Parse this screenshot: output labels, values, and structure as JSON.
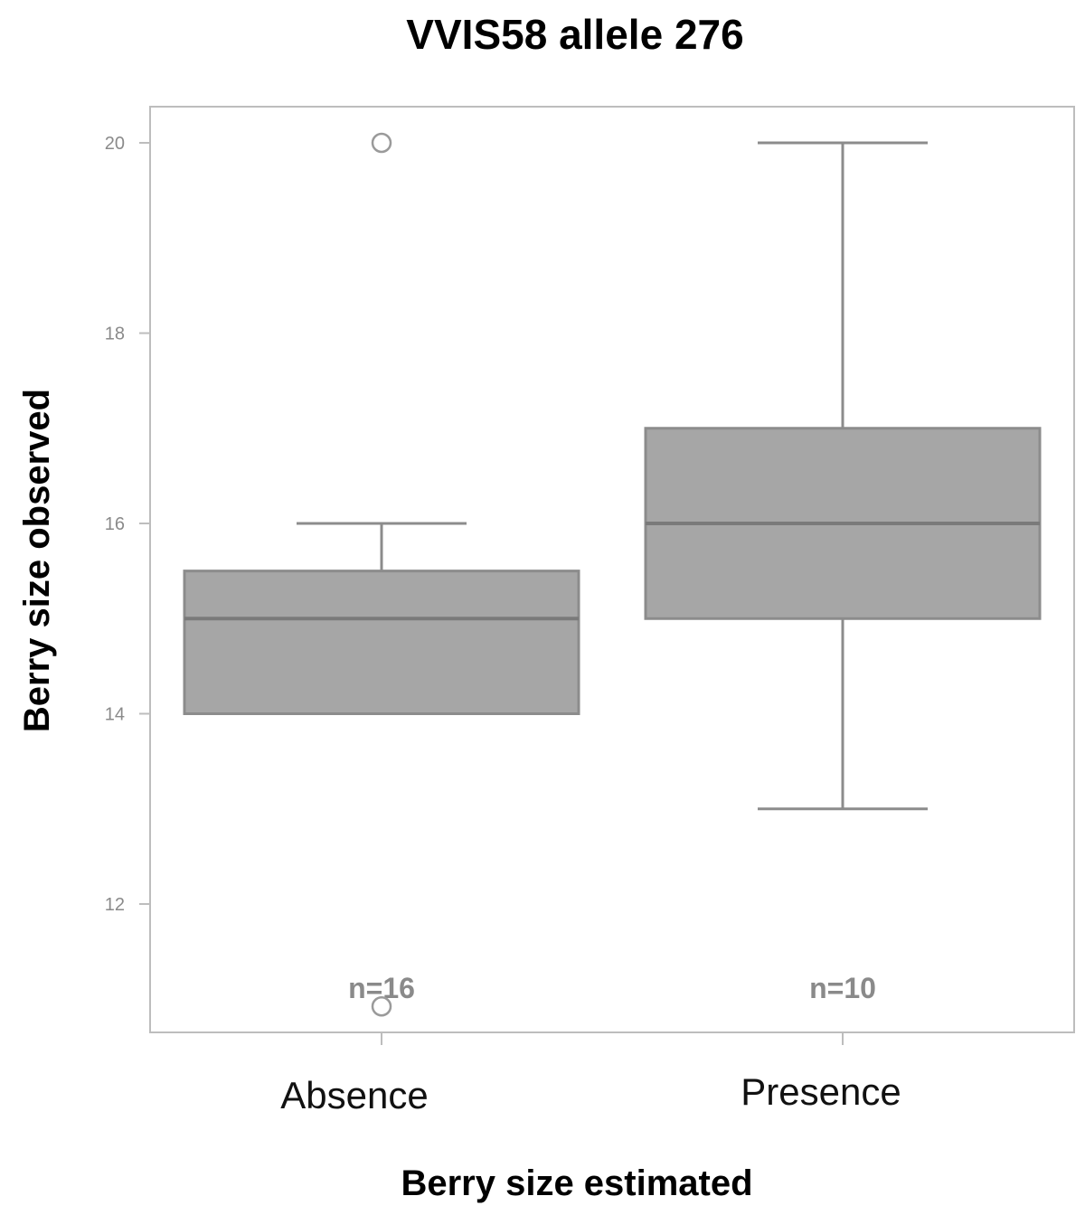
{
  "chart_data": {
    "type": "box",
    "title": "VVIS58 allele 276",
    "xlabel": "Berry size estimated",
    "ylabel": "Berry size observed",
    "ylim": [
      10.6,
      20.4
    ],
    "yticks": [
      12,
      14,
      16,
      18,
      20
    ],
    "ytick_labels": [
      "12",
      "14",
      "16",
      "18",
      "20"
    ],
    "grid": false,
    "categories": [
      "Absence",
      "Presence"
    ],
    "boxes": [
      {
        "category": "Absence",
        "whisker_low": 14,
        "q1": 14,
        "median": 15,
        "q3": 15.5,
        "whisker_high": 16,
        "outliers": [
          20,
          11
        ],
        "n_label": "n=16"
      },
      {
        "category": "Presence",
        "whisker_low": 13,
        "q1": 15,
        "median": 16,
        "q3": 17,
        "whisker_high": 20,
        "outliers": [],
        "n_label": "n=10"
      }
    ],
    "colors": {
      "box_fill": "#a6a6a6",
      "line": "#8c8c8c",
      "frame": "#bdbdbd",
      "tick_text": "#8a8a8a"
    }
  }
}
